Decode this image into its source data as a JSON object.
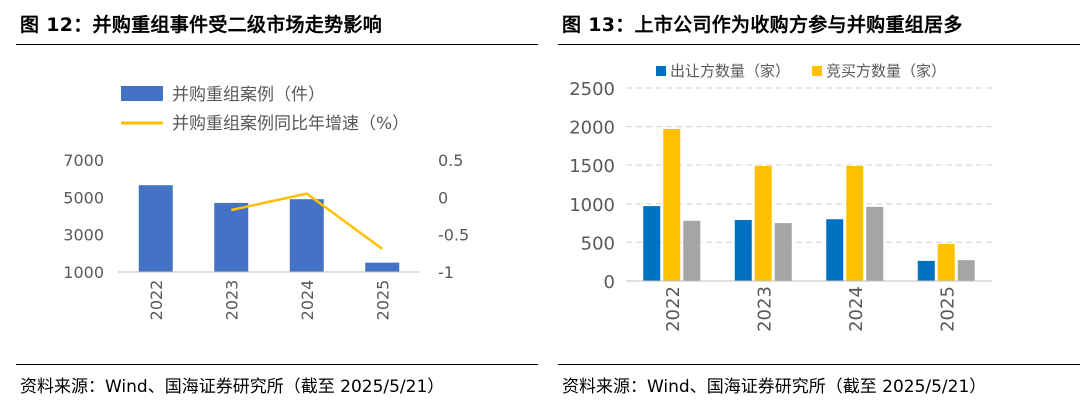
{
  "figures": [
    {
      "title": "图 12：并购重组事件受二级市场走势影响",
      "source": "资料来源：Wind、国海证券研究所（截至 2025/5/21）"
    },
    {
      "title": "图 13：上市公司作为收购方参与并购重组居多",
      "source": "资料来源：Wind、国海证券研究所（截至 2025/5/21）"
    }
  ],
  "colors": {
    "blue": "#4472C4",
    "gold": "#FFC000",
    "darkblue": "#0070C0",
    "grey": "#A5A5A5",
    "axis": "#595959",
    "grid": "#D9D9D9"
  },
  "chart_data": [
    {
      "type": "bar+line",
      "categories": [
        "2022",
        "2023",
        "2024",
        "2025"
      ],
      "series": [
        {
          "name": "并购重组案例（件）",
          "type": "bar",
          "axis": "left",
          "values": [
            5650,
            4700,
            4900,
            1500
          ]
        },
        {
          "name": "并购重组案例同比年增速（%）",
          "type": "line",
          "axis": "right",
          "values": [
            null,
            -0.17,
            0.05,
            -0.69
          ]
        }
      ],
      "y_left": {
        "range": [
          1000,
          7000
        ],
        "ticks": [
          "7000",
          "5000",
          "3000",
          "1000"
        ],
        "tick_values": [
          7000,
          5000,
          3000,
          1000
        ]
      },
      "y_right": {
        "range": [
          -1,
          0.5
        ],
        "ticks": [
          "0.5",
          "0",
          "-0.5",
          "-1"
        ],
        "tick_values": [
          0.5,
          0,
          -0.5,
          -1
        ]
      },
      "grid": false,
      "legend": "top"
    },
    {
      "type": "bar",
      "categories": [
        "2022",
        "2023",
        "2024",
        "2025"
      ],
      "series": [
        {
          "name": "出让方数量（家）",
          "values": [
            970,
            790,
            800,
            260
          ]
        },
        {
          "name": "竞买方数量（家）",
          "values": [
            1970,
            1490,
            1490,
            480
          ]
        },
        {
          "values": [
            780,
            750,
            960,
            270
          ]
        }
      ],
      "y": {
        "range": [
          0,
          2500
        ],
        "ticks": [
          "2500",
          "2000",
          "1500",
          "1000",
          "500",
          "0"
        ],
        "tick_values": [
          2500,
          2000,
          1500,
          1000,
          500,
          0
        ]
      },
      "grid": true,
      "legend": "top"
    }
  ]
}
